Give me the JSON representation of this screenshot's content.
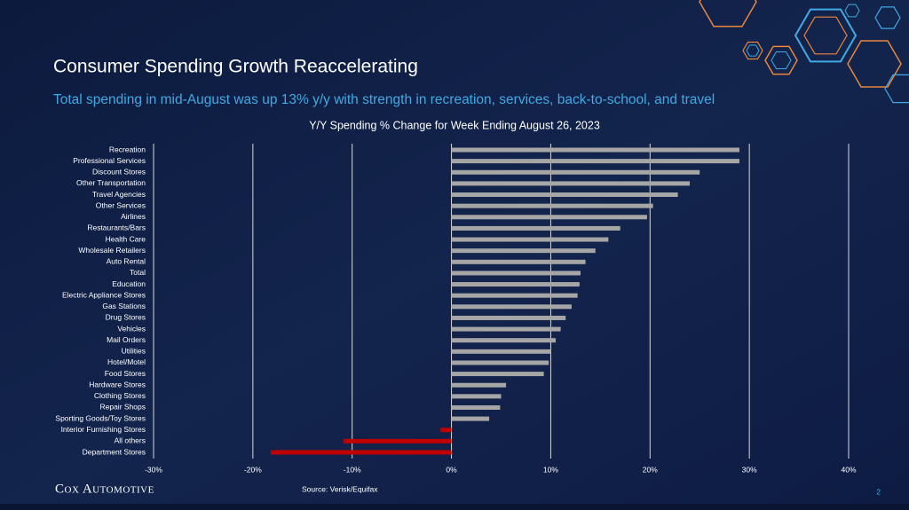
{
  "title": "Consumer Spending Growth Reaccelerating",
  "subtitle": "Total spending in mid-August  was up 13% y/y with strength in recreation, services, back-to-school, and travel",
  "chart_data": {
    "type": "bar",
    "orientation": "horizontal",
    "title": "Y/Y Spending % Change for Week Ending August 26, 2023",
    "categories": [
      "Recreation",
      "Professional Services",
      "Discount Stores",
      "Other Transportation",
      "Travel Agencies",
      "Other Services",
      "Airlines",
      "Restaurants/Bars",
      "Health Care",
      "Wholesale Retailers",
      "Auto Rental",
      "Total",
      "Education",
      "Electric Appliance Stores",
      "Gas Stations",
      "Drug Stores",
      "Vehicles",
      "Mail Orders",
      "Utilities",
      "Hotel/Motel",
      "Food Stores",
      "Hardware Stores",
      "Clothing Stores",
      "Repair Shops",
      "Sporting Goods/Toy Stores",
      "Interior Furnishing Stores",
      "All others",
      "Department Stores"
    ],
    "values": [
      29.0,
      29.0,
      25.0,
      24.0,
      22.8,
      20.3,
      19.7,
      17.0,
      15.8,
      14.5,
      13.5,
      13.0,
      12.9,
      12.7,
      12.1,
      11.5,
      11.0,
      10.5,
      10.0,
      9.8,
      9.3,
      5.5,
      5.0,
      4.9,
      3.8,
      -1.1,
      -10.9,
      -18.2
    ],
    "color": "#a6a6a6",
    "negative_color": "#c00000",
    "xlim": [
      -30,
      40
    ],
    "xticks": [
      {
        "value": -30,
        "label": "-30%"
      },
      {
        "value": -20,
        "label": "-20%"
      },
      {
        "value": -10,
        "label": "-10%"
      },
      {
        "value": 0,
        "label": "0%"
      },
      {
        "value": 10,
        "label": "10%"
      },
      {
        "value": 20,
        "label": "20%"
      },
      {
        "value": 30,
        "label": "30%"
      },
      {
        "value": 40,
        "label": "40%"
      }
    ],
    "grid": true,
    "source": "Source: Verisk/Equifax"
  },
  "footer": {
    "logo": "Cox Automotive",
    "page": 2
  }
}
